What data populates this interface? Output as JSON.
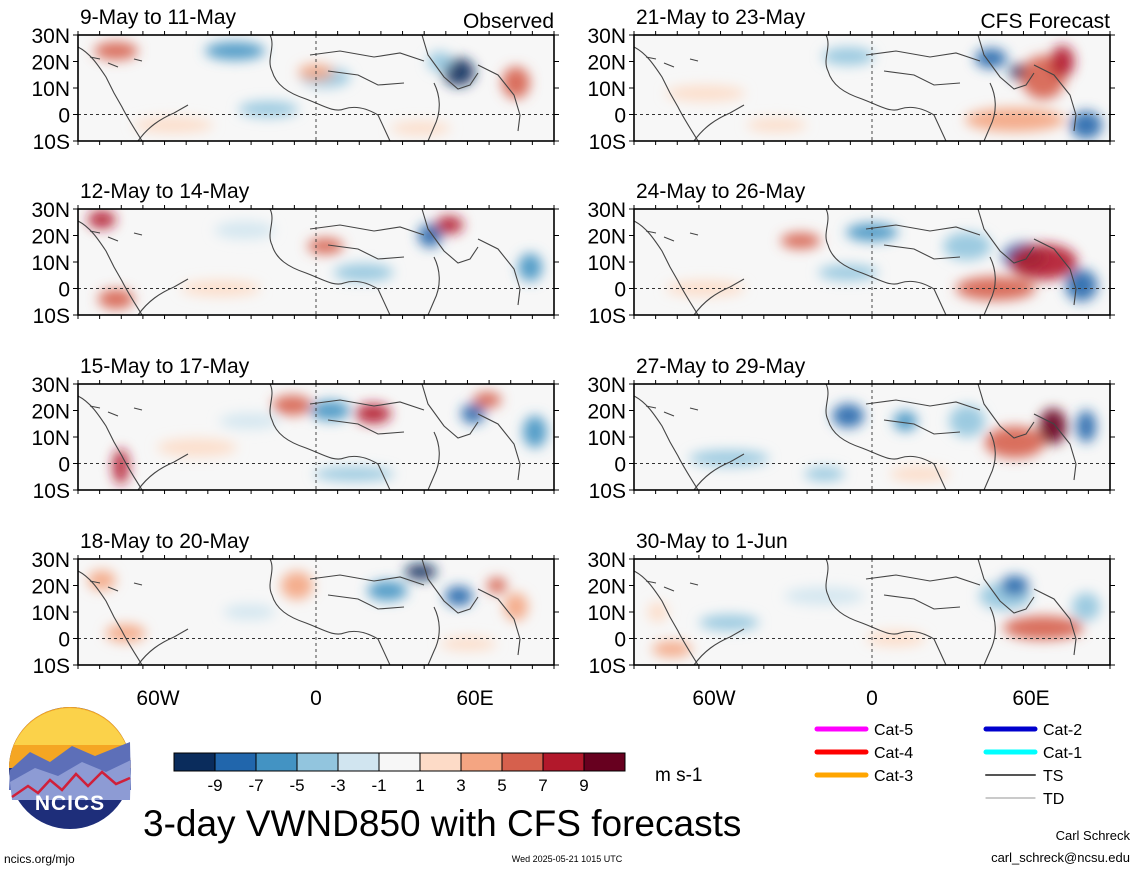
{
  "lat_labels": [
    "30N",
    "20N",
    "10N",
    "0",
    "10S"
  ],
  "lon_labels": [
    "60W",
    "0",
    "60E"
  ],
  "panels_observed": [
    {
      "date": "9-May to 11-May",
      "tag": "Observed"
    },
    {
      "date": "12-May to 14-May",
      "tag": ""
    },
    {
      "date": "15-May to 17-May",
      "tag": ""
    },
    {
      "date": "18-May to 20-May",
      "tag": ""
    }
  ],
  "panels_forecast": [
    {
      "date": "21-May to 23-May",
      "tag": "CFS Forecast"
    },
    {
      "date": "24-May to 26-May",
      "tag": ""
    },
    {
      "date": "27-May to 29-May",
      "tag": ""
    },
    {
      "date": "30-May to 1-Jun",
      "tag": ""
    }
  ],
  "colorbar": {
    "ticks": [
      "-9",
      "-7",
      "-5",
      "-3",
      "-1",
      "1",
      "3",
      "5",
      "7",
      "9"
    ],
    "colors": [
      "#0a2c5c",
      "#2166ac",
      "#4393c3",
      "#92c5de",
      "#d1e5f0",
      "#f7f7f7",
      "#fddbc7",
      "#f4a582",
      "#d6604d",
      "#b2182b",
      "#67001f"
    ],
    "units": "m s-1"
  },
  "legend": [
    {
      "label": "Cat-5",
      "color": "#ff00ff"
    },
    {
      "label": "Cat-4",
      "color": "#ff0000"
    },
    {
      "label": "Cat-3",
      "color": "#ffa500"
    },
    {
      "label": "Cat-2",
      "color": "#0000cd"
    },
    {
      "label": "Cat-1",
      "color": "#00ffff"
    },
    {
      "label": "TS",
      "color": "#555555"
    },
    {
      "label": "TD",
      "color": "#aaaaaa"
    }
  ],
  "title": "3-day VWND850 with CFS forecasts",
  "logo_text": "NCICS",
  "footer": {
    "url": "ncics.org/mjo",
    "timestamp": "Wed 2025-05-21 1015 UTC",
    "author": "Carl Schreck",
    "email": "carl_schreck@ncsu.edu"
  }
}
